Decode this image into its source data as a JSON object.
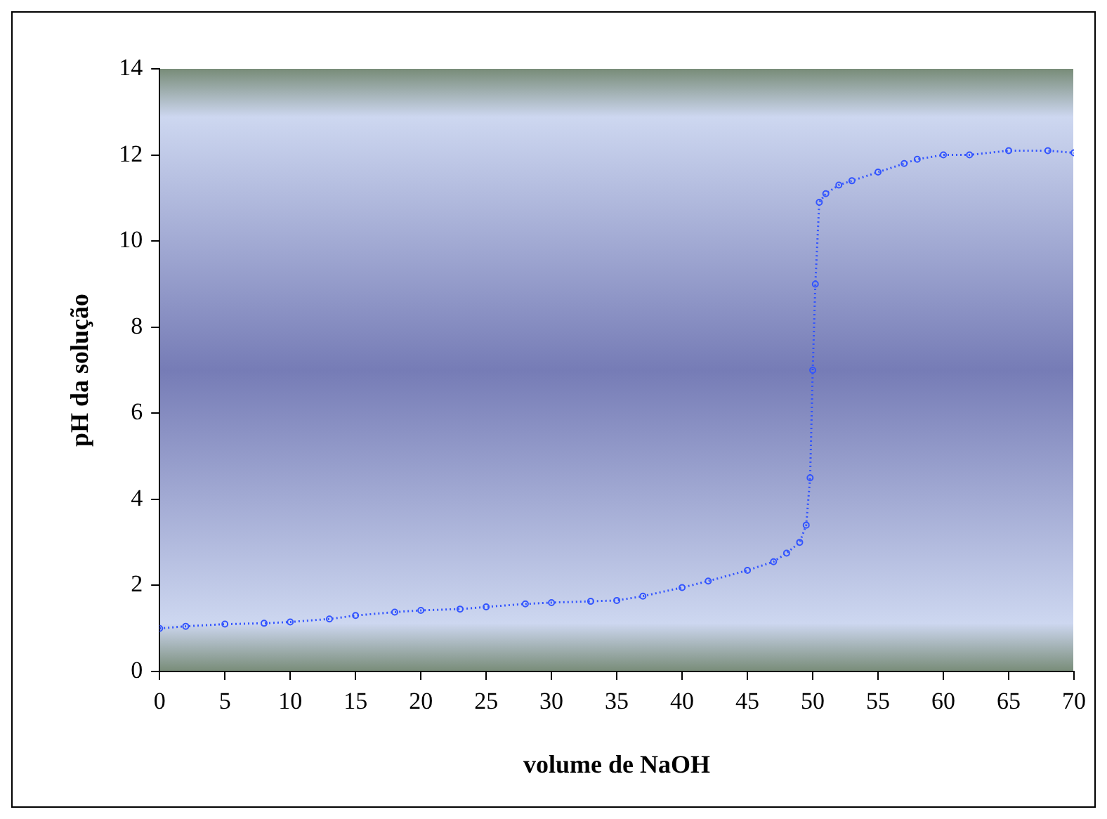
{
  "chart_data": {
    "type": "line",
    "xlabel": "volume de NaOH",
    "ylabel": "pH da solução",
    "xlim": [
      0,
      70
    ],
    "xticks": [
      0,
      5,
      10,
      15,
      20,
      25,
      30,
      35,
      40,
      45,
      50,
      55,
      60,
      65,
      70
    ],
    "ylim": [
      0,
      14
    ],
    "yticks": [
      0,
      2,
      4,
      6,
      8,
      10,
      12,
      14
    ],
    "grid": false,
    "legend": false,
    "marker": "circle",
    "line_style": "dotted",
    "series": [
      {
        "color": "#3355ff",
        "x": [
          0,
          2,
          5,
          8,
          10,
          13,
          15,
          18,
          20,
          23,
          25,
          28,
          30,
          33,
          35,
          37,
          40,
          42,
          45,
          47,
          48,
          49,
          49.5,
          49.8,
          50,
          50.2,
          50.5,
          51,
          52,
          53,
          55,
          57,
          58,
          60,
          62,
          65,
          68,
          70
        ],
        "values": [
          1.0,
          1.05,
          1.1,
          1.12,
          1.15,
          1.22,
          1.3,
          1.38,
          1.42,
          1.45,
          1.5,
          1.57,
          1.6,
          1.63,
          1.65,
          1.75,
          1.95,
          2.1,
          2.35,
          2.55,
          2.75,
          3.0,
          3.4,
          4.5,
          7.0,
          9.0,
          10.9,
          11.1,
          11.3,
          11.4,
          11.6,
          11.8,
          11.9,
          12.0,
          12.0,
          12.1,
          12.1,
          12.05
        ]
      }
    ]
  }
}
